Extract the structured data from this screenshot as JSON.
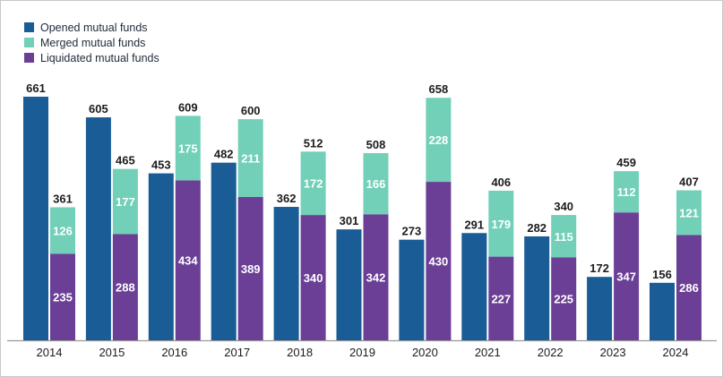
{
  "chart_data": {
    "type": "bar",
    "title": "",
    "xlabel": "",
    "ylabel": "",
    "legend_position": "top-left",
    "grid": false,
    "ylim": [
      0,
      700
    ],
    "categories": [
      "2014",
      "2015",
      "2016",
      "2017",
      "2018",
      "2019",
      "2020",
      "2021",
      "2022",
      "2023",
      "2024"
    ],
    "series": [
      {
        "name": "Opened mutual funds",
        "stack": "opened",
        "color": "#1a5c96",
        "values": [
          661,
          605,
          453,
          482,
          362,
          301,
          273,
          291,
          282,
          172,
          156
        ]
      },
      {
        "name": "Liquidated mutual funds",
        "stack": "closed",
        "color": "#6b3f96",
        "values": [
          235,
          288,
          434,
          389,
          340,
          342,
          430,
          227,
          225,
          347,
          286
        ]
      },
      {
        "name": "Merged mutual funds",
        "stack": "closed",
        "color": "#72d0b8",
        "values": [
          126,
          177,
          175,
          211,
          172,
          166,
          228,
          179,
          115,
          112,
          121
        ]
      }
    ],
    "closed_totals": [
      361,
      465,
      609,
      600,
      512,
      508,
      658,
      406,
      340,
      459,
      407
    ]
  },
  "legend": [
    {
      "label": "Opened mutual funds",
      "color": "#1a5c96"
    },
    {
      "label": "Merged mutual funds",
      "color": "#72d0b8"
    },
    {
      "label": "Liquidated mutual funds",
      "color": "#6b3f96"
    }
  ]
}
